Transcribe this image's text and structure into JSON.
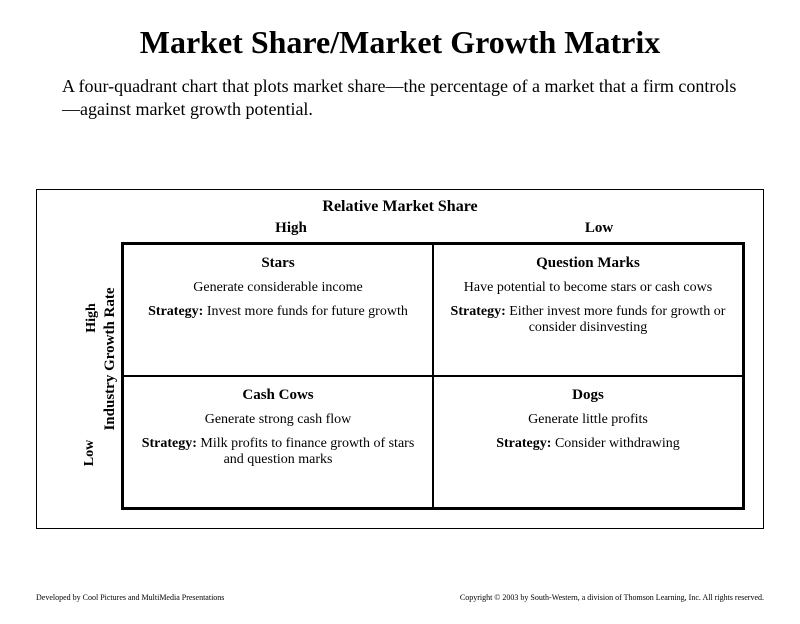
{
  "title": "Market Share/Market Growth Matrix",
  "subtitle": "A four-quadrant chart that plots market share—the percentage of a market that a firm controls—against market growth potential.",
  "matrix": {
    "x_axis_title": "Relative Market Share",
    "y_axis_title": "Industry Growth Rate",
    "col_labels": {
      "left": "High",
      "right": "Low"
    },
    "row_labels": {
      "top": "High",
      "bottom": "Low"
    },
    "strategy_label": "Strategy:",
    "border_color": "#000000",
    "background_color": "#ffffff",
    "title_fontsize": 32,
    "subtitle_fontsize": 18,
    "header_fontsize": 16,
    "label_fontsize": 15,
    "cell_fontsize": 14,
    "quadrants": {
      "top_left": {
        "name": "Stars",
        "description": "Generate considerable income",
        "strategy": "Invest more funds for future growth"
      },
      "top_right": {
        "name": "Question Marks",
        "description": "Have potential to become stars or cash cows",
        "strategy": "Either invest more funds for growth or consider disinvesting"
      },
      "bottom_left": {
        "name": "Cash Cows",
        "description": "Generate strong cash flow",
        "strategy": "Milk profits to finance growth of stars and question marks"
      },
      "bottom_right": {
        "name": "Dogs",
        "description": "Generate little profits",
        "strategy": "Consider withdrawing"
      }
    }
  },
  "footer": {
    "left": "Developed by Cool Pictures and MultiMedia Presentations",
    "right": "Copyright © 2003 by South-Western, a division of Thomson Learning, Inc. All rights reserved."
  }
}
